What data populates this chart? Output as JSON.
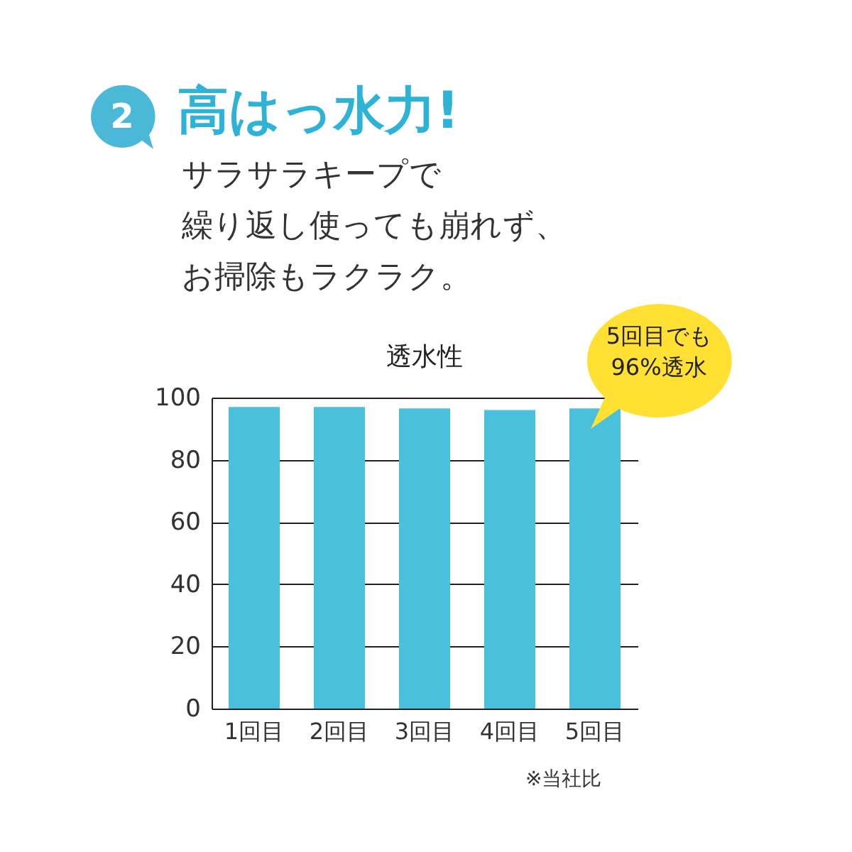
{
  "chart_data": {
    "type": "bar",
    "title": "透水性",
    "categories": [
      "1回目",
      "2回目",
      "3回目",
      "4回目",
      "5回目"
    ],
    "values": [
      97,
      97,
      96.5,
      96,
      96.5
    ],
    "color": "#4bc0dc",
    "ylim": [
      0,
      100
    ],
    "yticks": [
      0,
      20,
      40,
      60,
      80,
      100
    ],
    "grid": "y",
    "annotations": [
      "2",
      "高はっ水力!",
      "サラサラキープで",
      "繰り返し使っても崩れず、",
      "お掃除もラクラク。",
      "5回目でも\n96%透水",
      "※当社比"
    ]
  }
}
